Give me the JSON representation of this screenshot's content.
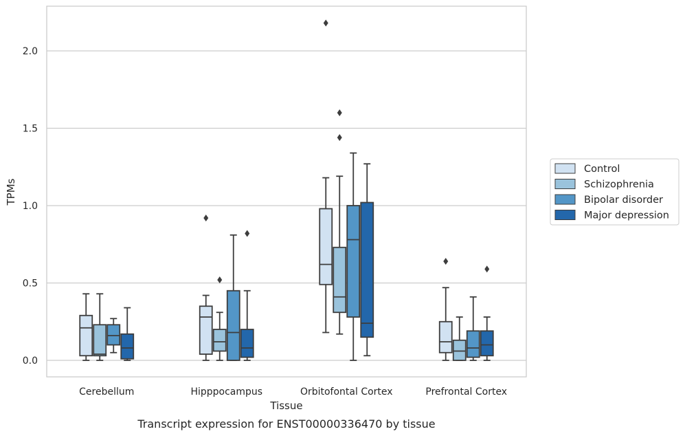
{
  "chart_data": {
    "type": "box",
    "xlabel": "Tissue",
    "ylabel": "TPMs",
    "caption": "Transcript expression for ENST00000336470 by tissue",
    "ylim": [
      -0.1,
      2.3
    ],
    "yticks": [
      "0.0",
      "0.5",
      "1.0",
      "1.5",
      "2.0"
    ],
    "grid": "horizontal",
    "legend_position": "right",
    "categories": [
      "Cerebellum",
      "Hipppocampus",
      "Orbitofontal Cortex",
      "Prefrontal Cortex"
    ],
    "series": [
      {
        "name": "Control",
        "color": "#d1e2f2",
        "boxes": [
          {
            "whislo": 0.0,
            "q1": 0.03,
            "med": 0.21,
            "q3": 0.29,
            "whishi": 0.43,
            "fliers": []
          },
          {
            "whislo": 0.0,
            "q1": 0.04,
            "med": 0.28,
            "q3": 0.35,
            "whishi": 0.42,
            "fliers": [
              0.92
            ]
          },
          {
            "whislo": 0.18,
            "q1": 0.49,
            "med": 0.62,
            "q3": 0.98,
            "whishi": 1.18,
            "fliers": [
              2.18
            ]
          },
          {
            "whislo": 0.0,
            "q1": 0.05,
            "med": 0.12,
            "q3": 0.25,
            "whishi": 0.47,
            "fliers": [
              0.64
            ]
          }
        ]
      },
      {
        "name": "Schizophrenia",
        "color": "#9ac3dc",
        "boxes": [
          {
            "whislo": 0.0,
            "q1": 0.03,
            "med": 0.04,
            "q3": 0.23,
            "whishi": 0.43,
            "fliers": []
          },
          {
            "whislo": 0.0,
            "q1": 0.06,
            "med": 0.12,
            "q3": 0.2,
            "whishi": 0.31,
            "fliers": [
              0.52
            ]
          },
          {
            "whislo": 0.17,
            "q1": 0.31,
            "med": 0.41,
            "q3": 0.73,
            "whishi": 1.19,
            "fliers": [
              1.6,
              1.44
            ]
          },
          {
            "whislo": 0.0,
            "q1": 0.0,
            "med": 0.06,
            "q3": 0.13,
            "whishi": 0.28,
            "fliers": []
          }
        ]
      },
      {
        "name": "Bipolar disorder",
        "color": "#5396c7",
        "boxes": [
          {
            "whislo": 0.05,
            "q1": 0.1,
            "med": 0.16,
            "q3": 0.23,
            "whishi": 0.27,
            "fliers": []
          },
          {
            "whislo": 0.0,
            "q1": 0.0,
            "med": 0.18,
            "q3": 0.45,
            "whishi": 0.81,
            "fliers": []
          },
          {
            "whislo": 0.0,
            "q1": 0.28,
            "med": 0.78,
            "q3": 1.0,
            "whishi": 1.34,
            "fliers": []
          },
          {
            "whislo": 0.0,
            "q1": 0.02,
            "med": 0.08,
            "q3": 0.19,
            "whishi": 0.41,
            "fliers": []
          }
        ]
      },
      {
        "name": "Major depression",
        "color": "#2367ab",
        "boxes": [
          {
            "whislo": 0.0,
            "q1": 0.01,
            "med": 0.08,
            "q3": 0.17,
            "whishi": 0.34,
            "fliers": []
          },
          {
            "whislo": 0.0,
            "q1": 0.02,
            "med": 0.08,
            "q3": 0.2,
            "whishi": 0.45,
            "fliers": [
              0.82
            ]
          },
          {
            "whislo": 0.03,
            "q1": 0.15,
            "med": 0.24,
            "q3": 1.02,
            "whishi": 1.27,
            "fliers": []
          },
          {
            "whislo": 0.0,
            "q1": 0.03,
            "med": 0.1,
            "q3": 0.19,
            "whishi": 0.28,
            "fliers": [
              0.59
            ]
          }
        ]
      }
    ]
  }
}
